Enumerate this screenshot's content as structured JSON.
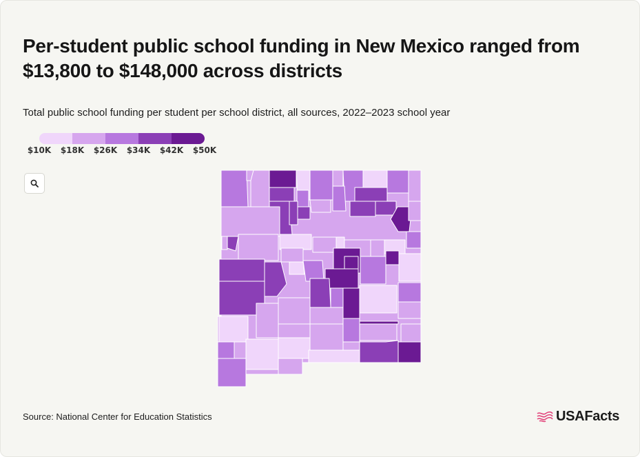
{
  "header": {
    "title": "Per-student public school funding in New Mexico ranged from $13,800 to $148,000 across districts",
    "subtitle": "Total public school funding per student per school district, all sources, 2022–2023 school year"
  },
  "legend": {
    "labels": [
      "$10K",
      "$18K",
      "$26K",
      "$34K",
      "$42K",
      "$50K"
    ],
    "colors": [
      "#f0d6fb",
      "#d6a6ee",
      "#b778df",
      "#8b3fb6",
      "#6b1a93"
    ]
  },
  "controls": {
    "zoom_icon": "search-icon"
  },
  "map": {
    "region": "New Mexico",
    "districts_drawn_as": "choropleth polygons",
    "color_scale_min": 10000,
    "color_scale_max": 50000
  },
  "footer": {
    "source": "Source: National Center for Education Statistics",
    "logo": "USAFacts",
    "logo_icon": "us-flag-icon"
  }
}
